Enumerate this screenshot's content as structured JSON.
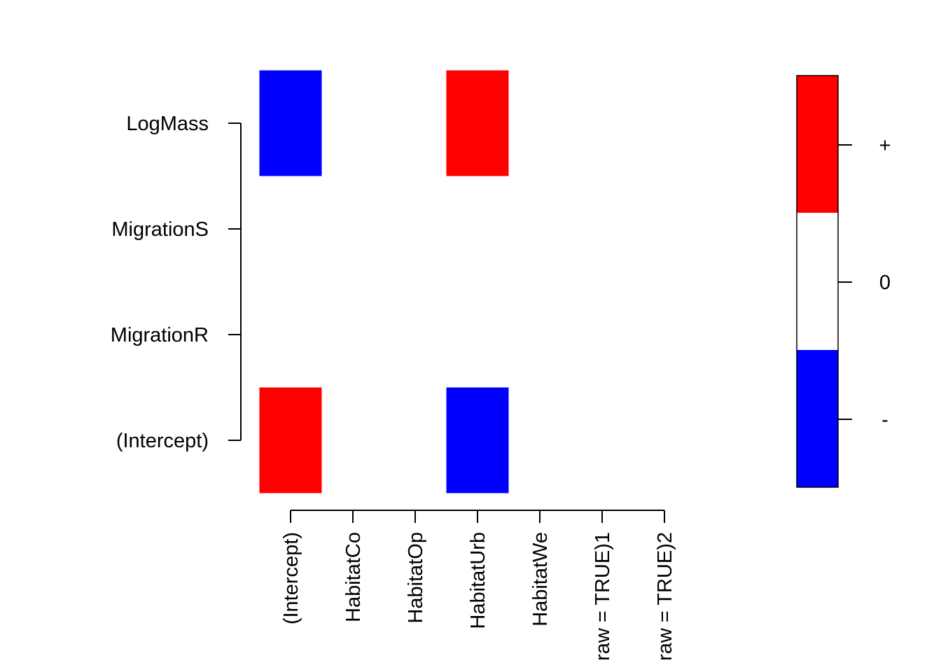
{
  "chart_data": {
    "type": "heatmap",
    "columns": [
      "(Intercept)",
      "HabitatCo",
      "HabitatOp",
      "HabitatUrb",
      "HabitatWe",
      "raw = TRUE)1",
      "raw = TRUE)2"
    ],
    "rows": [
      "(Intercept)",
      "MigrationR",
      "MigrationS",
      "LogMass"
    ],
    "values": [
      [
        1,
        0,
        0,
        -1,
        0,
        0,
        0
      ],
      [
        0,
        0,
        0,
        0,
        0,
        0,
        0
      ],
      [
        0,
        0,
        0,
        0,
        0,
        0,
        0
      ],
      [
        -1,
        0,
        0,
        1,
        0,
        0,
        0
      ]
    ],
    "legend": {
      "position": "right",
      "levels": [
        {
          "label": "-",
          "value": -1,
          "color": "#0000FF"
        },
        {
          "label": "0",
          "value": 0,
          "color": "#FFFFFF"
        },
        {
          "label": "+",
          "value": 1,
          "color": "#FF0000"
        }
      ]
    },
    "grid": false
  }
}
